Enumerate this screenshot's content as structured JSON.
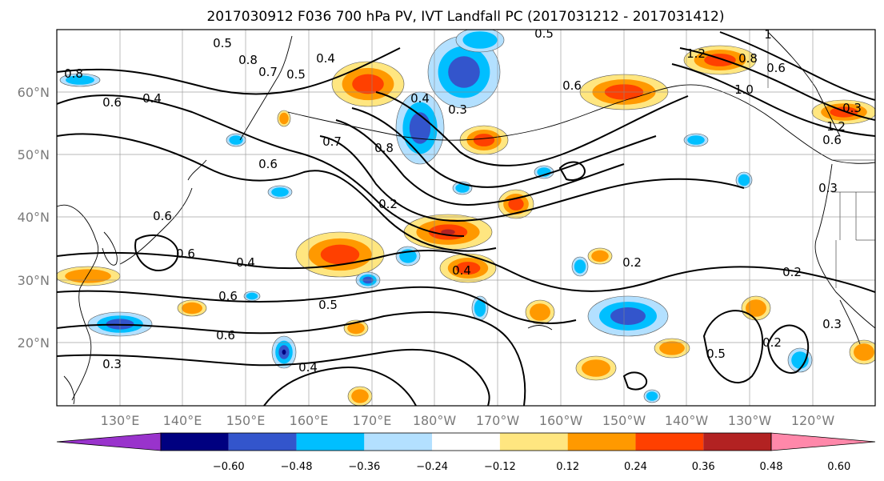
{
  "title": "2017030912 F036 700 hPa PV, IVT Landfall PC (2017031212 - 2017031412)",
  "map": {
    "lat_labels": [
      "60°N",
      "50°N",
      "40°N",
      "30°N",
      "20°N"
    ],
    "lon_labels": [
      "130°E",
      "140°E",
      "150°E",
      "160°E",
      "170°E",
      "180°W",
      "170°W",
      "160°W",
      "150°W",
      "140°W",
      "130°W",
      "120°W"
    ],
    "grid_lines": true,
    "contour_color": "#000000"
  },
  "contour_labels": [
    "0.8",
    "0.6",
    "0.4",
    "0.7",
    "0.8",
    "0.5",
    "0.4",
    "0.6",
    "0.5",
    "0.4",
    "0.3",
    "0.7",
    "0.8",
    "0.6",
    "1.2",
    "0.8",
    "0.6",
    "1.0",
    "1.2",
    "0.5",
    "1",
    "0.6",
    "0.3",
    "0.6",
    "0.6",
    "0.4",
    "0.6",
    "0.5",
    "0.6",
    "0.4",
    "0.3",
    "0.2",
    "0.2",
    "0.2",
    "0.5",
    "0.3",
    "0.4",
    "0.2",
    "0.3"
  ],
  "colorbar": {
    "ticks": [
      "−0.60",
      "−0.48",
      "−0.36",
      "−0.24",
      "−0.12",
      "0.12",
      "0.24",
      "0.36",
      "0.48",
      "0.60"
    ],
    "colors": [
      "#9933cc",
      "#000080",
      "#3355cc",
      "#00bfff",
      "#b3e0ff",
      "#ffffff",
      "#ffe680",
      "#ff9900",
      "#ff4000",
      "#b22222",
      "#ff88aa"
    ],
    "extend": "both"
  },
  "shading": {
    "positive_colors": [
      "#ffe680",
      "#ff9900",
      "#ff4000",
      "#b22222"
    ],
    "negative_colors": [
      "#b3e0ff",
      "#00bfff",
      "#3355cc",
      "#000080"
    ]
  }
}
